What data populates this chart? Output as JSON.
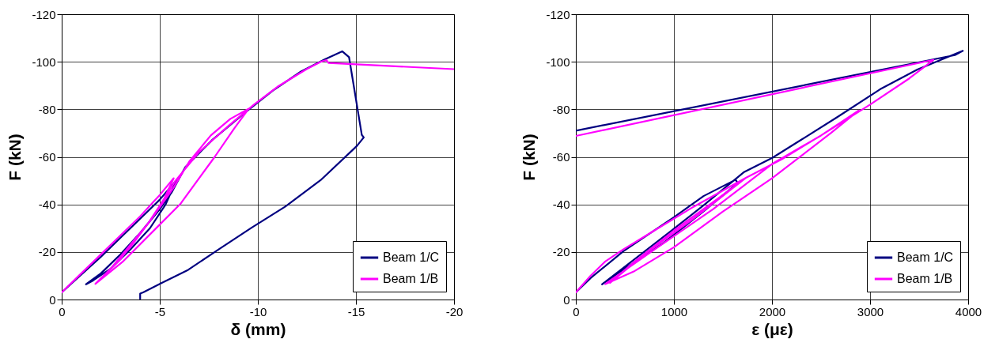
{
  "chart_data": [
    {
      "type": "line",
      "xlabel": "δ (mm)",
      "ylabel": "F (kN)",
      "xlim": [
        0,
        -20
      ],
      "ylim": [
        0,
        -120
      ],
      "xticks": [
        0,
        -5,
        -10,
        -15,
        -20
      ],
      "yticks": [
        0,
        -20,
        -40,
        -60,
        -80,
        -100,
        -120
      ],
      "grid": true,
      "legend": "bottom right",
      "series": [
        {
          "name": "Beam 1/C",
          "color": "#000080",
          "x": [
            0,
            -1,
            -2,
            -3,
            -4,
            -5,
            -5.85,
            -5.3,
            -4.5,
            -3.5,
            -2.5,
            -1.6,
            -1.24,
            -2,
            -3,
            -4,
            -5,
            -5.6,
            -6.3,
            -7.66,
            -9.4,
            -10.75,
            -12.2,
            -13.4,
            -14.3,
            -14.65,
            -15.3,
            -15.4,
            -15.05,
            -13.2,
            -11.4,
            -9.68,
            -8.06,
            -6.45,
            -5.1,
            -4.17,
            -4,
            -4
          ],
          "values": [
            -3,
            -10.5,
            -18,
            -26,
            -34,
            -42,
            -50.2,
            -40,
            -30,
            -21,
            -13,
            -8,
            -6.4,
            -11,
            -19,
            -28,
            -38,
            -45,
            -55.7,
            -67,
            -79,
            -87.8,
            -95.9,
            -101,
            -104.4,
            -101.9,
            -69.2,
            -68.2,
            -64.6,
            -50.2,
            -39.1,
            -30.2,
            -21.4,
            -12.5,
            -7,
            -3.1,
            -2.5,
            -0.3
          ]
        },
        {
          "name": "Beam 1/B",
          "color": "#ff00ff",
          "x": [
            0,
            -1,
            -2,
            -3,
            -4,
            -5,
            -5.71,
            -5.2,
            -4.4,
            -3.5,
            -2.5,
            -1.72,
            -2.5,
            -3.5,
            -4.5,
            -5.7,
            -6.5,
            -7.6,
            -8.6,
            -9.54,
            -8.8,
            -7.8,
            -6.05,
            -4.84,
            -3.1,
            -1.72,
            -3,
            -4.5,
            -5.8,
            -7,
            -8.5,
            -9.8,
            -11,
            -12.5,
            -13.2,
            -13.5,
            -13.6,
            -20
          ],
          "values": [
            -3,
            -11,
            -19,
            -27,
            -35,
            -44,
            -51,
            -42,
            -32,
            -22,
            -13,
            -6.6,
            -13,
            -23,
            -33,
            -47,
            -58,
            -69,
            -76,
            -80.3,
            -72,
            -60,
            -40.2,
            -30.2,
            -15.8,
            -6.6,
            -17,
            -33,
            -50,
            -62,
            -73,
            -82,
            -89.5,
            -97,
            -100,
            -100.7,
            -99.5,
            -96.9
          ]
        }
      ]
    },
    {
      "type": "line",
      "xlabel": "ε (με)",
      "ylabel": "F (kN)",
      "xlim": [
        0,
        4000
      ],
      "ylim": [
        0,
        -120
      ],
      "xticks": [
        0,
        1000,
        2000,
        3000,
        4000
      ],
      "yticks": [
        0,
        -20,
        -40,
        -60,
        -80,
        -100,
        -120
      ],
      "grid": true,
      "legend": "bottom right",
      "series": [
        {
          "name": "Beam 1/C",
          "color": "#000080",
          "x": [
            0,
            150,
            485,
            1003,
            1302,
            1629,
            1650,
            1300,
            900,
            500,
            267,
            600,
            975,
            1302,
            1711,
            2003,
            2283,
            2665,
            3101,
            3482,
            3946,
            3864,
            0
          ],
          "values": [
            -3,
            -9,
            -20.3,
            -34.7,
            -43.5,
            -50.4,
            -49,
            -37,
            -24,
            -13,
            -6.4,
            -17,
            -29,
            -39.6,
            -53.5,
            -59.6,
            -66.8,
            -76.7,
            -88.4,
            -96.7,
            -104.6,
            -102.8,
            -71
          ]
        },
        {
          "name": "Beam 1/B",
          "color": "#ff00ff",
          "x": [
            0,
            150,
            300,
            480,
            800,
            1200,
            1738,
            1500,
            1000,
            600,
            349,
            700,
            1200,
            1738,
            2100,
            2500,
            2883,
            2600,
            2000,
            1500,
            1000,
            600,
            300,
            800,
            1400,
            2000,
            2500,
            3000,
            3400,
            3646,
            0
          ],
          "values": [
            -3,
            -10,
            -16,
            -21,
            -29,
            -39,
            -51.3,
            -44,
            -29,
            -16,
            -7,
            -19,
            -34,
            -51.3,
            -59,
            -69,
            -79.5,
            -70,
            -51,
            -37,
            -22,
            -12,
            -6.5,
            -21,
            -38,
            -57,
            -69,
            -82,
            -93,
            -100.8,
            -68.8
          ]
        }
      ]
    }
  ]
}
